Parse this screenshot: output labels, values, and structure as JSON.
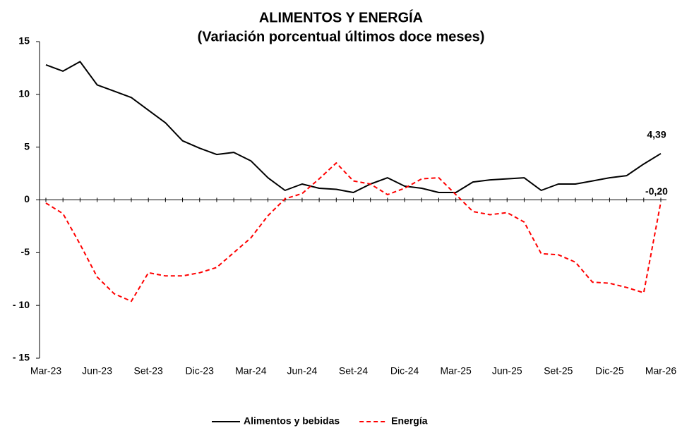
{
  "chart_data": {
    "type": "line",
    "title": "ALIMENTOS Y ENERGÍA",
    "subtitle": "(Variación porcentual últimos doce meses)",
    "categories": [
      "Mar-23",
      null,
      null,
      "Jun-23",
      null,
      null,
      "Set-23",
      null,
      null,
      "Dic-23",
      null,
      null,
      "Mar-24",
      null,
      null,
      "Jun-24",
      null,
      null,
      "Set-24",
      null,
      null,
      "Dic-24",
      null,
      null,
      "Mar-25",
      null,
      null,
      "Jun-25",
      null,
      null,
      "Set-25",
      null,
      null,
      "Dic-25",
      null,
      null,
      "Mar-26"
    ],
    "series": [
      {
        "name": "Alimentos y bebidas",
        "color": "#000000",
        "line_style": "solid",
        "values": [
          12.8,
          12.2,
          13.1,
          10.9,
          10.3,
          9.7,
          8.5,
          7.3,
          5.6,
          4.9,
          4.3,
          4.5,
          3.7,
          2.1,
          0.9,
          1.5,
          1.1,
          1.0,
          0.7,
          1.5,
          2.1,
          1.3,
          1.1,
          0.7,
          0.7,
          1.7,
          1.9,
          2.0,
          2.1,
          0.9,
          1.5,
          1.5,
          1.8,
          2.1,
          2.3,
          3.4,
          4.39
        ],
        "value_labels": [
          null,
          null,
          null,
          null,
          null,
          null,
          null,
          null,
          null,
          null,
          null,
          null,
          null,
          null,
          null,
          null,
          null,
          null,
          null,
          null,
          null,
          null,
          null,
          null,
          null,
          null,
          null,
          null,
          null,
          null,
          null,
          null,
          null,
          null,
          null,
          null,
          "4,39"
        ]
      },
      {
        "name": "Energía",
        "color": "#ff0000",
        "line_style": "dashed",
        "values": [
          -0.3,
          -1.3,
          -4.2,
          -7.3,
          -8.9,
          -9.6,
          -6.9,
          -7.2,
          -7.2,
          -6.9,
          -6.4,
          -5.0,
          -3.6,
          -1.5,
          0.1,
          0.6,
          2.0,
          3.5,
          1.8,
          1.5,
          0.5,
          1.1,
          2.0,
          2.1,
          0.5,
          -1.1,
          -1.4,
          -1.2,
          -2.1,
          -5.1,
          -5.2,
          -5.9,
          -7.8,
          -7.9,
          -8.3,
          -8.8,
          -0.2
        ],
        "value_labels": [
          null,
          null,
          null,
          null,
          null,
          null,
          null,
          null,
          null,
          null,
          null,
          null,
          null,
          null,
          null,
          null,
          null,
          null,
          null,
          null,
          null,
          null,
          null,
          null,
          null,
          null,
          null,
          null,
          null,
          null,
          null,
          null,
          null,
          null,
          null,
          null,
          "-0,20"
        ]
      }
    ],
    "ylim": [
      -15,
      15
    ],
    "yticks": [
      15,
      10,
      5,
      0,
      -5,
      {
        "value": -10,
        "label": "- 10"
      },
      {
        "value": -15,
        "label": "- 15"
      }
    ],
    "grid": false,
    "legend": "bottom"
  }
}
